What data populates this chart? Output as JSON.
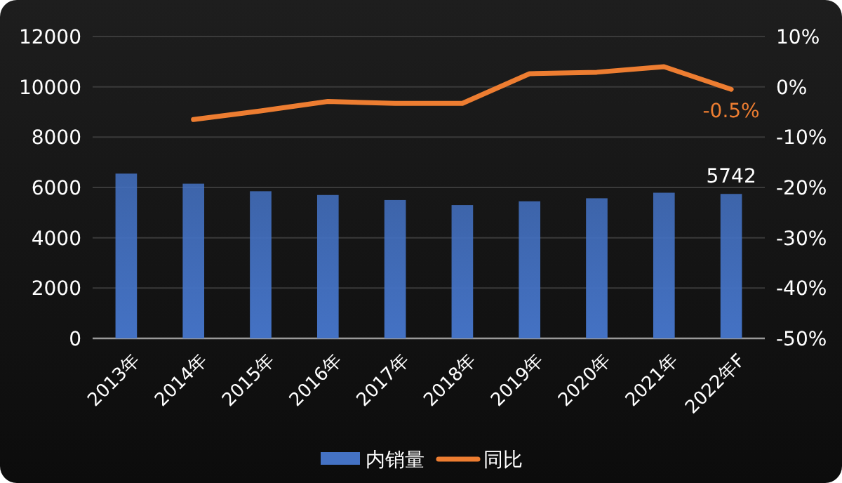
{
  "chart_data": {
    "type": "bar",
    "categories": [
      "2013年",
      "2014年",
      "2015年",
      "2016年",
      "2017年",
      "2018年",
      "2019年",
      "2020年",
      "2021年",
      "2022年F"
    ],
    "series": [
      {
        "name": "内销量",
        "color": "#4472c4",
        "values": [
          6550,
          6150,
          5850,
          5700,
          5500,
          5300,
          5450,
          5570,
          5790,
          5742
        ],
        "value_labels": [
          null,
          null,
          null,
          null,
          null,
          null,
          null,
          null,
          null,
          "5742"
        ]
      },
      {
        "name": "同比",
        "type": "line",
        "axis": "y2",
        "color": "#ed7d31",
        "values": [
          null,
          -6.5,
          -4.8,
          -2.9,
          -3.3,
          -3.3,
          2.6,
          2.9,
          4.0,
          -0.5
        ],
        "value_labels": [
          null,
          null,
          null,
          null,
          null,
          null,
          null,
          null,
          null,
          "-0.5%"
        ]
      }
    ],
    "ylim": [
      0,
      12000
    ],
    "yticks": [
      0,
      2000,
      4000,
      6000,
      8000,
      10000,
      12000
    ],
    "y2lim": [
      -50,
      10
    ],
    "y2ticks": [
      {
        "value": -50,
        "label": "-50%"
      },
      {
        "value": -40,
        "label": "-40%"
      },
      {
        "value": -30,
        "label": "-30%"
      },
      {
        "value": -20,
        "label": "-20%"
      },
      {
        "value": -10,
        "label": "-10%"
      },
      {
        "value": 0,
        "label": "0%"
      },
      {
        "value": 10,
        "label": "10%"
      }
    ],
    "grid": "y",
    "legend": "bottom",
    "marker": "none",
    "line_style": "solid"
  }
}
